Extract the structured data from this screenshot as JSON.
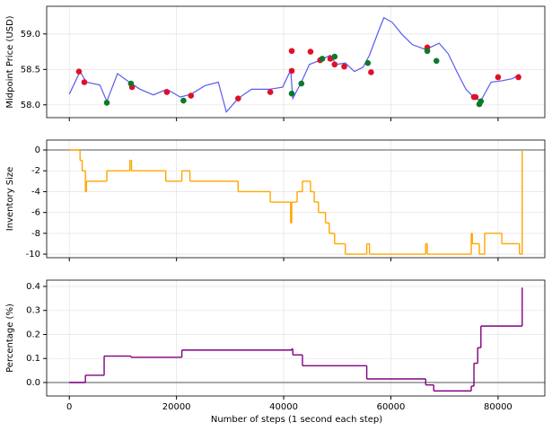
{
  "chart_data": [
    {
      "type": "line",
      "ylabel": "Midpoint Price (USD)",
      "xlim": [
        -4225,
        88725
      ],
      "ylim": [
        57.82,
        59.39
      ],
      "yticks": [
        {
          "value": 58.0,
          "label": "58.0"
        },
        58.5,
        {
          "value": 59.0,
          "label": "59.0"
        }
      ],
      "grid": true,
      "x": [
        0,
        2000,
        3200,
        5700,
        7000,
        9000,
        11200,
        13200,
        15700,
        18200,
        20700,
        22700,
        25300,
        27800,
        29300,
        31500,
        34000,
        37300,
        39800,
        41300,
        41700,
        43300,
        44800,
        46500,
        48700,
        49800,
        51500,
        53200,
        54800,
        56000,
        57700,
        58700,
        60300,
        62000,
        64000,
        66500,
        69000,
        70700,
        72300,
        74000,
        75700,
        76800,
        78700,
        80700,
        82700,
        84000
      ],
      "series": [
        {
          "color": "#5a5af0",
          "values": [
            58.15,
            58.47,
            58.32,
            58.28,
            58.05,
            58.44,
            58.32,
            58.22,
            58.14,
            58.22,
            58.11,
            58.15,
            58.27,
            58.32,
            57.9,
            58.09,
            58.22,
            58.22,
            58.25,
            58.49,
            58.09,
            58.32,
            58.57,
            58.62,
            58.7,
            58.57,
            58.59,
            58.47,
            58.53,
            58.7,
            59.04,
            59.23,
            59.16,
            59.0,
            58.85,
            58.78,
            58.87,
            58.72,
            58.47,
            58.22,
            58.09,
            58.06,
            58.32,
            58.34,
            58.37,
            58.43
          ]
        }
      ],
      "markers": [
        {
          "color": "#e0102a",
          "x": [
            1800,
            2800,
            11700,
            18200,
            22700,
            31500,
            37500,
            41500,
            41500,
            45000,
            46800,
            48700,
            49500,
            51300,
            56300,
            66800,
            75500,
            75800,
            80000,
            83800
          ],
          "values": [
            58.47,
            58.32,
            58.25,
            58.18,
            58.13,
            58.09,
            58.18,
            58.76,
            58.48,
            58.75,
            58.63,
            58.65,
            58.57,
            58.54,
            58.46,
            58.81,
            58.11,
            58.11,
            58.39,
            58.39
          ]
        },
        {
          "color": "#0a7a2a",
          "x": [
            7000,
            11500,
            21300,
            41500,
            43300,
            47200,
            49500,
            55700,
            66800,
            68500,
            76500,
            76800
          ],
          "values": [
            58.03,
            58.3,
            58.06,
            58.16,
            58.3,
            58.65,
            58.68,
            58.59,
            58.76,
            58.62,
            58.01,
            58.05
          ]
        }
      ]
    },
    {
      "type": "step",
      "ylabel": "Inventory Size",
      "xlim": [
        -4225,
        88725
      ],
      "ylim": [
        -10.34,
        0.95
      ],
      "yticks": [
        0,
        -2,
        -4,
        -6,
        -8,
        -10
      ],
      "grid": true,
      "hline": 0,
      "x": [
        0,
        2000,
        2400,
        3000,
        3200,
        7000,
        11300,
        11600,
        18000,
        21000,
        22500,
        31500,
        37500,
        41300,
        41500,
        42500,
        43500,
        45000,
        45700,
        46500,
        47800,
        48500,
        49500,
        51500,
        55500,
        56000,
        66500,
        66800,
        75000,
        75200,
        76500,
        77500,
        80700,
        84000,
        84500
      ],
      "series": [
        {
          "color": "#ffa500",
          "values": [
            0,
            -1,
            -2,
            -4,
            -3,
            -2,
            -1,
            -2,
            -3,
            -2,
            -3,
            -4,
            -5,
            -7,
            -5,
            -4,
            -3,
            -4,
            -5,
            -6,
            -7,
            -8,
            -9,
            -10,
            -9,
            -10,
            -9,
            -10,
            -8,
            -9,
            -10,
            -8,
            -9,
            -10,
            0
          ]
        }
      ]
    },
    {
      "type": "step",
      "ylabel": "Percentage (%)",
      "xlabel": "Number of steps (1 second each step)",
      "xlim": [
        -4225,
        88725
      ],
      "ylim": [
        -0.056,
        0.426
      ],
      "yticks": [
        {
          "value": 0,
          "label": "0.0"
        },
        0.1,
        0.2,
        0.3,
        0.4
      ],
      "xticks": [
        0,
        20000,
        40000,
        60000,
        80000
      ],
      "grid": true,
      "hline": 0,
      "x": [
        0,
        3000,
        6500,
        11500,
        21000,
        41500,
        41700,
        43500,
        55500,
        66500,
        68000,
        75000,
        75500,
        76200,
        76800,
        84500
      ],
      "series": [
        {
          "color": "#800080",
          "values": [
            0,
            0.03,
            0.11,
            0.105,
            0.135,
            0.14,
            0.115,
            0.07,
            0.015,
            -0.01,
            -0.035,
            -0.015,
            0.08,
            0.145,
            0.235,
            0.395
          ]
        }
      ]
    }
  ]
}
